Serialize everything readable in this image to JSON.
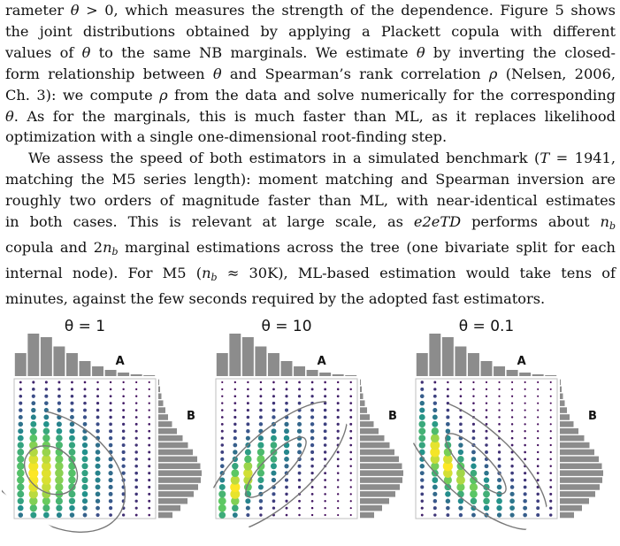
{
  "text": {
    "lines": [
      {
        "id": "l1",
        "segments": [
          {
            "t": "rameter "
          },
          {
            "t": "θ",
            "i": true
          },
          {
            "t": " > 0, which measures the strength of the dependence. Figure 5 shows"
          }
        ]
      },
      {
        "id": "l2",
        "segments": [
          {
            "t": "the joint distributions obtained by applying a Plackett copula with different"
          }
        ]
      },
      {
        "id": "l3",
        "segments": [
          {
            "t": "values of "
          },
          {
            "t": "θ",
            "i": true
          },
          {
            "t": " to the same NB marginals. We estimate "
          },
          {
            "t": "θ",
            "i": true
          },
          {
            "t": " by inverting the closed-"
          }
        ]
      },
      {
        "id": "l4",
        "segments": [
          {
            "t": "form relationship between "
          },
          {
            "t": "θ",
            "i": true
          },
          {
            "t": " and Spearman’s rank correlation "
          },
          {
            "t": "ρ",
            "i": true
          },
          {
            "t": " (Nelsen, 2006,"
          }
        ]
      },
      {
        "id": "l5",
        "segments": [
          {
            "t": "Ch. 3): we compute "
          },
          {
            "t": "ρ",
            "i": true
          },
          {
            "t": " from the data and solve numerically for the corresponding"
          }
        ]
      },
      {
        "id": "l6",
        "segments": [
          {
            "t": "θ",
            "i": true
          },
          {
            "t": ". As for the marginals, this is much faster than ML, as it replaces likelihood"
          }
        ]
      },
      {
        "id": "l7",
        "last": true,
        "segments": [
          {
            "t": "optimization with a single one-dimensional root-finding step."
          }
        ]
      },
      {
        "id": "l8",
        "indent": true,
        "segments": [
          {
            "t": "We assess the speed of both estimators in a simulated benchmark ("
          },
          {
            "t": "T",
            "i": true
          },
          {
            "t": " = 1941,"
          }
        ]
      },
      {
        "id": "l9",
        "segments": [
          {
            "t": "matching the M5 series length): moment matching and Spearman inversion are"
          }
        ]
      },
      {
        "id": "l10",
        "segments": [
          {
            "t": "roughly two orders of magnitude faster than ML, with near-identical estimates"
          }
        ]
      },
      {
        "id": "l11",
        "segments": [
          {
            "t": "in both cases. This is relevant at large scale, as "
          },
          {
            "t": "e2eTD",
            "i": true
          },
          {
            "t": " performs about "
          },
          {
            "t": "n",
            "i": true
          },
          {
            "t": "b",
            "sub": true
          }
        ]
      },
      {
        "id": "l12",
        "segments": [
          {
            "t": "copula and 2"
          },
          {
            "t": "n",
            "i": true
          },
          {
            "t": "b",
            "sub": true
          },
          {
            "t": " marginal estimations across the tree (one bivariate split for each"
          }
        ]
      },
      {
        "id": "l13",
        "segments": [
          {
            "t": "internal node). For M5 ("
          },
          {
            "t": "n",
            "i": true
          },
          {
            "t": "b",
            "sub": true
          },
          {
            "t": " ≈ 30K), ML-based estimation would take tens of"
          }
        ]
      },
      {
        "id": "l14",
        "last": true,
        "segments": [
          {
            "t": "minutes, against the few seconds required by the adopted fast estimators."
          }
        ]
      }
    ]
  },
  "figure": {
    "axis_label_a": "A",
    "axis_label_b": "B",
    "panels": [
      {
        "id": "theta-1",
        "title": "θ = 1",
        "theta": 1
      },
      {
        "id": "theta-10",
        "title": "θ = 10",
        "theta": 10
      },
      {
        "id": "theta-0-1",
        "title": "θ = 0.1",
        "theta": 0.1
      }
    ],
    "marginal_a": [
      0.52,
      0.96,
      0.88,
      0.67,
      0.52,
      0.34,
      0.22,
      0.14,
      0.08,
      0.04,
      0.02
    ],
    "marginal_b": [
      0.02,
      0.04,
      0.07,
      0.11,
      0.16,
      0.22,
      0.31,
      0.42,
      0.55,
      0.67,
      0.78,
      0.88,
      0.95,
      0.98,
      0.96,
      0.9,
      0.8,
      0.66,
      0.5,
      0.32
    ],
    "colors": {
      "bars": "#8c8c8c",
      "contour": "#777777",
      "frame": "#bfbfbf"
    }
  }
}
